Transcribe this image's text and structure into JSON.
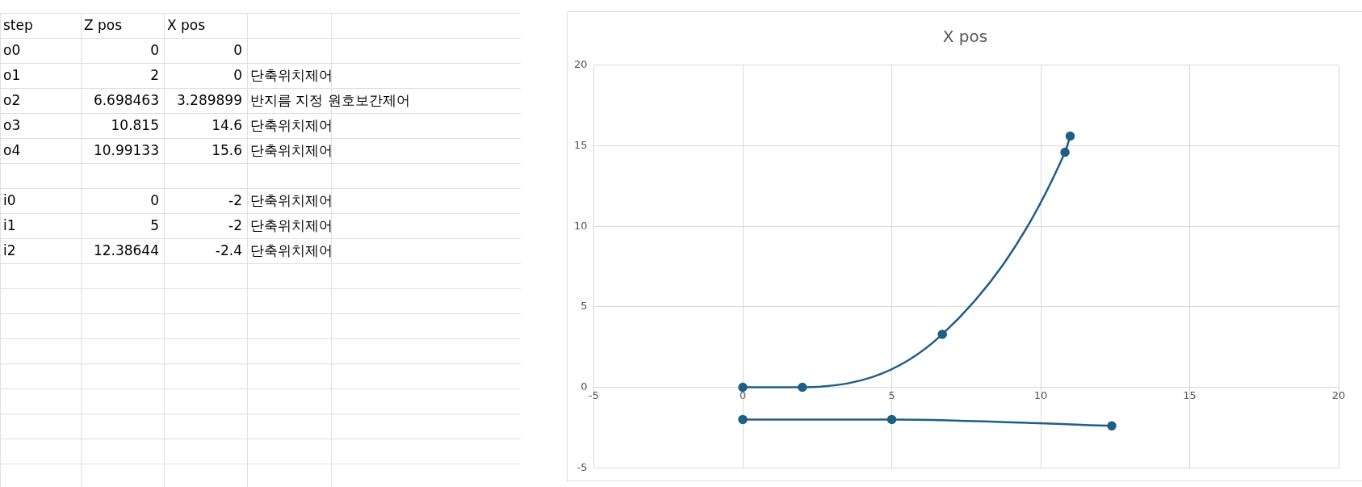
{
  "chart_data": [
    {
      "type": "other",
      "cell_labels": [
        [
          "step",
          "Z pos",
          "X pos",
          null
        ],
        [
          "o0",
          "0",
          "0",
          null
        ],
        [
          "o1",
          "2",
          "0",
          "단축위치제어"
        ],
        [
          "o2",
          "6.698463",
          "3.289899",
          "반지름 지정 원호보간제어"
        ],
        [
          "o3",
          "10.815",
          "14.6",
          "단축위치제어"
        ],
        [
          "o4",
          "10.99133",
          "15.6",
          "단축위치제어"
        ],
        [
          null,
          null,
          null,
          null
        ],
        [
          "i0",
          "0",
          "-2",
          "단축위치제어"
        ],
        [
          "i1",
          "5",
          "-2",
          "단축위치제어"
        ],
        [
          "i2",
          "12.38644",
          "-2.4",
          "단축위치제어"
        ]
      ]
    },
    {
      "type": "line",
      "title": "X pos",
      "series": [
        {
          "color": "#1f5f84",
          "x": [
            0,
            2,
            6.698463,
            10.815,
            10.99133
          ],
          "values": [
            0,
            0,
            3.289899,
            14.6,
            15.6
          ]
        },
        {
          "color": "#1f5f84",
          "x": [
            0,
            5,
            12.38644
          ],
          "values": [
            -2,
            -2,
            -2.4
          ]
        }
      ],
      "xlim": [
        -5,
        20
      ],
      "xticks": [
        -5,
        0,
        5,
        10,
        15,
        20
      ],
      "ylim": [
        -5,
        20
      ],
      "yticks": [
        -5,
        0,
        5,
        10,
        15,
        20
      ],
      "grid": true,
      "marker": "circle",
      "line_style": "solid"
    }
  ]
}
